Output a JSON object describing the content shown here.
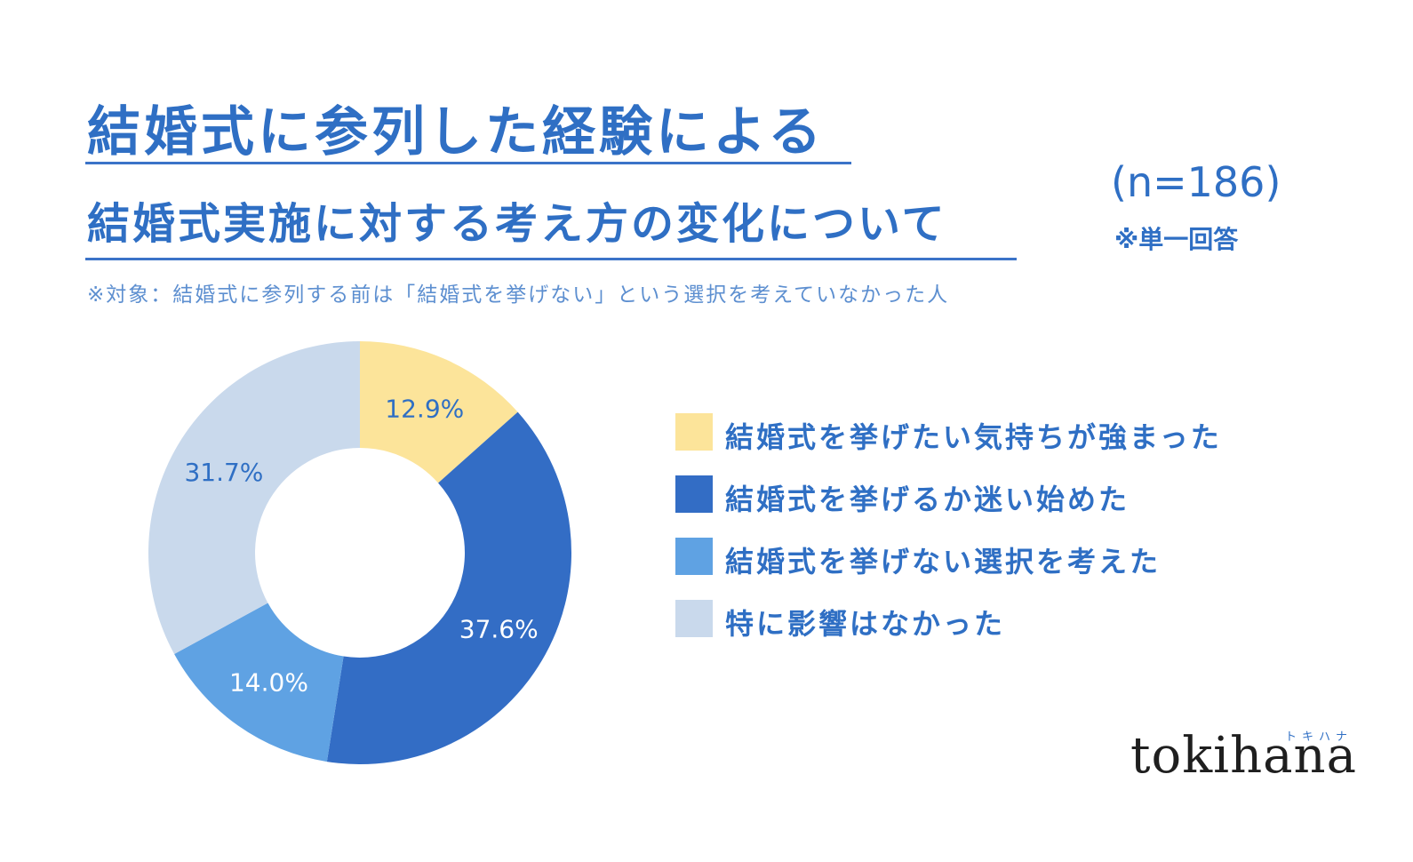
{
  "header": {
    "title_line1": "結婚式に参列した経験による",
    "title_line2": "結婚式実施に対する考え方の変化について",
    "sample_size": "(n=186)",
    "answer_type": "※単一回答",
    "target_note": "※対象：結婚式に参列する前は「結婚式を挙げない」という選択を考えていなかった人"
  },
  "chart_data": {
    "type": "pie",
    "donut": true,
    "title": "結婚式に参列した経験による結婚式実施に対する考え方の変化について",
    "categories": [
      "結婚式を挙げたい気持ちが強まった",
      "結婚式を挙げるか迷い始めた",
      "結婚式を挙げない選択を考えた",
      "特に影響はなかった"
    ],
    "values": [
      12.9,
      37.6,
      14.0,
      31.7
    ],
    "value_labels": [
      "12.9%",
      "37.6%",
      "14.0%",
      "31.7%"
    ],
    "colors": [
      "#fce49a",
      "#336dc5",
      "#5fa2e3",
      "#c9d9ec"
    ],
    "label_colors": [
      "#2f6fc4",
      "#ffffff",
      "#ffffff",
      "#2f6fc4"
    ],
    "legend_position": "right"
  },
  "brand": {
    "name": "tokihana",
    "kana": "トキハナ"
  }
}
